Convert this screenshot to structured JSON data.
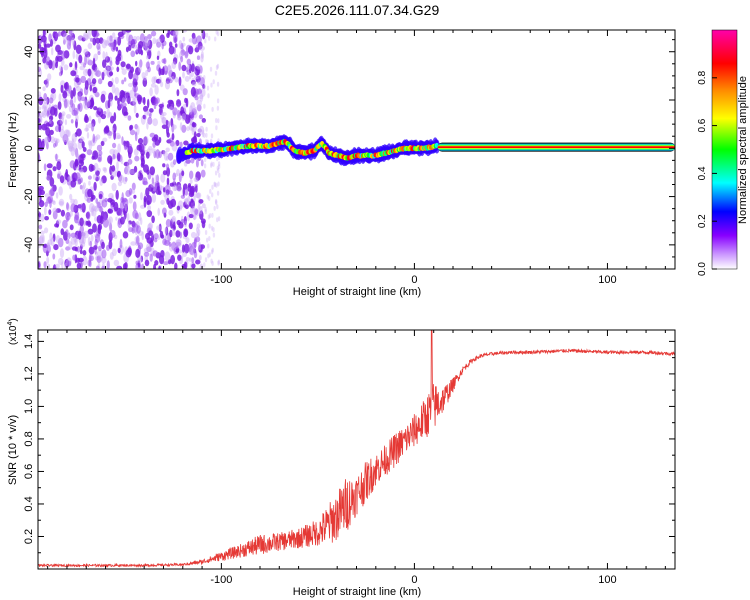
{
  "title": "C2E5.2026.111.07.34.G29",
  "chart_data": [
    {
      "type": "heatmap",
      "name": "spectrogram",
      "xlabel": "Height of straight line (km)",
      "ylabel": "Frequency (Hz)",
      "xlim": [
        -195,
        135
      ],
      "ylim": [
        -50,
        49
      ],
      "x_ticks": [
        -100,
        0,
        100
      ],
      "y_ticks": [
        -40,
        -20,
        0,
        20,
        40
      ],
      "colorbar": {
        "label": "Normalized spectral amplitude",
        "range": [
          0,
          1
        ],
        "ticks": [
          0.0,
          0.2,
          0.4,
          0.6,
          0.8
        ],
        "tick_labels": [
          "0.0",
          "0.2",
          "0.4",
          "0.6",
          "0.8"
        ],
        "colors": [
          "#ffffff",
          "#8800ff",
          "#0000ff",
          "#00ffff",
          "#00ff00",
          "#ffff00",
          "#ff8800",
          "#ff0000",
          "#ff00aa"
        ]
      },
      "noise_region_x": [
        -195,
        -109
      ],
      "ridge": {
        "x": [
          -122,
          -115,
          -105,
          -95,
          -85,
          -75,
          -67,
          -62,
          -57,
          -52,
          -48,
          -44,
          -40,
          -35,
          -30,
          -25,
          -20,
          -15,
          -10,
          -5,
          0,
          5,
          12
        ],
        "freq": [
          -3,
          -1,
          -1,
          0,
          1,
          1,
          3,
          -1,
          -2,
          -1,
          2,
          -2,
          -3,
          -4,
          -3,
          -3,
          -3,
          -2,
          -1,
          0,
          0,
          0,
          1
        ]
      },
      "carrier": {
        "x": [
          12,
          135
        ],
        "freq": 0.5
      }
    },
    {
      "type": "line",
      "name": "snr",
      "xlabel": "Height of straight line (km)",
      "ylabel": "SNR (10 * v/v)",
      "scale_label": "(x10",
      "scale_exp": "4",
      "scale_suffix": ")",
      "xlim": [
        -195,
        135
      ],
      "ylim": [
        0,
        1.47
      ],
      "x_ticks": [
        -100,
        0,
        100
      ],
      "y_ticks": [
        0.2,
        0.4,
        0.6,
        0.8,
        1.0,
        1.2,
        1.4
      ],
      "y_tick_labels": [
        "0.2",
        "0.4",
        "0.6",
        "0.8",
        "1.0",
        "1.2",
        "1.4"
      ],
      "color": "#e53935",
      "series": {
        "x": [
          -195,
          -170,
          -140,
          -120,
          -110,
          -100,
          -90,
          -80,
          -70,
          -60,
          -50,
          -45,
          -40,
          -35,
          -30,
          -25,
          -20,
          -15,
          -10,
          -5,
          0,
          5,
          10,
          15,
          20,
          25,
          30,
          35,
          40,
          50,
          60,
          80,
          100,
          120,
          135
        ],
        "mean": [
          0.02,
          0.02,
          0.02,
          0.025,
          0.04,
          0.07,
          0.1,
          0.13,
          0.15,
          0.17,
          0.2,
          0.23,
          0.28,
          0.35,
          0.42,
          0.5,
          0.58,
          0.64,
          0.7,
          0.76,
          0.82,
          0.88,
          0.95,
          1.02,
          1.12,
          1.22,
          1.28,
          1.31,
          1.32,
          1.33,
          1.33,
          1.34,
          1.33,
          1.33,
          1.32
        ],
        "jitter": [
          0.01,
          0.01,
          0.01,
          0.01,
          0.02,
          0.04,
          0.06,
          0.09,
          0.08,
          0.09,
          0.12,
          0.18,
          0.22,
          0.25,
          0.18,
          0.18,
          0.15,
          0.14,
          0.15,
          0.14,
          0.15,
          0.18,
          0.22,
          0.12,
          0.06,
          0.03,
          0.02,
          0.015,
          0.015,
          0.015,
          0.015,
          0.015,
          0.015,
          0.015,
          0.015
        ]
      },
      "peak": {
        "x": 9,
        "y": 1.47
      }
    }
  ]
}
